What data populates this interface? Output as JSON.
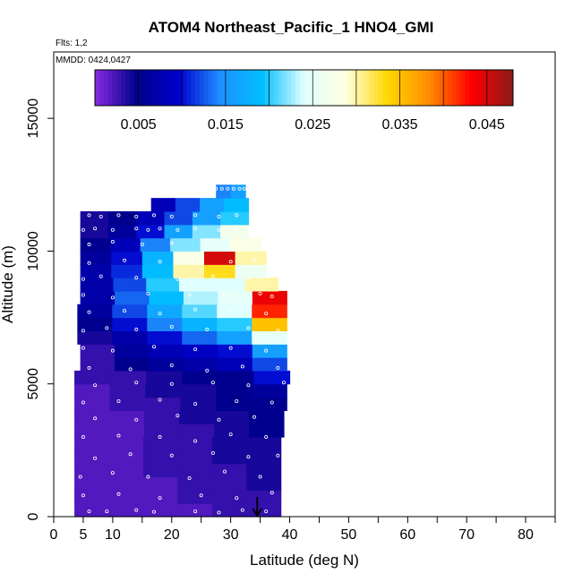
{
  "chart_data": {
    "type": "heatmap",
    "title": "ATOM4 Northeast_Pacific_1 HNO4_GMI",
    "flights_label": "Flts: 1,2",
    "dates_label": "MMDD: 0424,0427",
    "xlabel": "Latitude (deg N)",
    "ylabel": "Altitude (m)",
    "xlim": [
      0,
      85
    ],
    "ylim": [
      0,
      17500
    ],
    "x_ticks": [
      0,
      5,
      10,
      20,
      30,
      40,
      50,
      60,
      70,
      80
    ],
    "y_ticks": [
      0,
      5000,
      10000,
      15000
    ],
    "colorbar": {
      "range": [
        0,
        0.048
      ],
      "tick_values": [
        0.005,
        0.015,
        0.025,
        0.035,
        0.045
      ],
      "tick_labels": [
        "0.005",
        "0.015",
        "0.025",
        "0.035",
        "0.045"
      ],
      "colors": [
        "#8a2be2",
        "#00008b",
        "#0000cd",
        "#1e90ff",
        "#00bfff",
        "#e0ffff",
        "#ffffe0",
        "#ffd700",
        "#ff8c00",
        "#ff0000",
        "#8b1a1a"
      ]
    },
    "layers": [
      {
        "alt_min": 0,
        "alt_max": 500,
        "lat_min": 3.5,
        "lat_max": 38.5,
        "values": [
          0.002,
          0.002,
          0.002,
          0.002,
          0.003,
          0.003
        ]
      },
      {
        "alt_min": 500,
        "alt_max": 1000,
        "lat_min": 3.5,
        "lat_max": 38.5,
        "values": [
          0.002,
          0.002,
          0.002,
          0.003,
          0.003,
          0.003
        ]
      },
      {
        "alt_min": 1000,
        "alt_max": 1500,
        "lat_min": 3.5,
        "lat_max": 38.5,
        "values": [
          0.002,
          0.002,
          0.002,
          0.003,
          0.003,
          0.004
        ]
      },
      {
        "alt_min": 1500,
        "alt_max": 2000,
        "lat_min": 3.5,
        "lat_max": 38.5,
        "values": [
          0.002,
          0.002,
          0.003,
          0.003,
          0.003,
          0.004
        ]
      },
      {
        "alt_min": 2000,
        "alt_max": 2500,
        "lat_min": 3.5,
        "lat_max": 38.5,
        "values": [
          0.002,
          0.002,
          0.003,
          0.003,
          0.004,
          0.004
        ]
      },
      {
        "alt_min": 2500,
        "alt_max": 3000,
        "lat_min": 3.5,
        "lat_max": 38.5,
        "values": [
          0.002,
          0.002,
          0.003,
          0.003,
          0.004,
          0.004
        ]
      },
      {
        "alt_min": 3000,
        "alt_max": 3500,
        "lat_min": 3.5,
        "lat_max": 39,
        "values": [
          0.002,
          0.002,
          0.003,
          0.003,
          0.004,
          0.005
        ]
      },
      {
        "alt_min": 3500,
        "alt_max": 4000,
        "lat_min": 3.5,
        "lat_max": 39,
        "values": [
          0.002,
          0.002,
          0.003,
          0.004,
          0.004,
          0.005
        ]
      },
      {
        "alt_min": 4000,
        "alt_max": 4500,
        "lat_min": 3.5,
        "lat_max": 39.5,
        "values": [
          0.002,
          0.003,
          0.003,
          0.004,
          0.005,
          0.005
        ]
      },
      {
        "alt_min": 4500,
        "alt_max": 5000,
        "lat_min": 3.5,
        "lat_max": 39.5,
        "values": [
          0.002,
          0.003,
          0.004,
          0.004,
          0.005,
          0.006
        ]
      },
      {
        "alt_min": 5000,
        "alt_max": 5500,
        "lat_min": 3.5,
        "lat_max": 40,
        "values": [
          0.003,
          0.003,
          0.004,
          0.005,
          0.005,
          0.01
        ]
      },
      {
        "alt_min": 5500,
        "alt_max": 6000,
        "lat_min": 4.5,
        "lat_max": 39.5,
        "values": [
          0.003,
          0.005,
          0.006,
          0.007,
          0.008,
          0.012
        ]
      },
      {
        "alt_min": 6000,
        "alt_max": 6500,
        "lat_min": 4.5,
        "lat_max": 39.5,
        "values": [
          0.003,
          0.006,
          0.008,
          0.009,
          0.01,
          0.016
        ]
      },
      {
        "alt_min": 6500,
        "alt_max": 7000,
        "lat_min": 4,
        "lat_max": 39.5,
        "values": [
          0.004,
          0.007,
          0.01,
          0.013,
          0.016,
          0.025
        ]
      },
      {
        "alt_min": 7000,
        "alt_max": 7500,
        "lat_min": 4,
        "lat_max": 39.5,
        "values": [
          0.005,
          0.01,
          0.014,
          0.018,
          0.02,
          0.035
        ]
      },
      {
        "alt_min": 7500,
        "alt_max": 8000,
        "lat_min": 4,
        "lat_max": 39.5,
        "values": [
          0.006,
          0.012,
          0.017,
          0.021,
          0.024,
          0.042
        ]
      },
      {
        "alt_min": 8000,
        "alt_max": 8500,
        "lat_min": 4.5,
        "lat_max": 39.5,
        "values": [
          0.007,
          0.013,
          0.019,
          0.023,
          0.025,
          0.044
        ]
      },
      {
        "alt_min": 8500,
        "alt_max": 9000,
        "lat_min": 4.5,
        "lat_max": 38,
        "values": [
          0.007,
          0.012,
          0.02,
          0.024,
          0.024,
          0.03
        ]
      },
      {
        "alt_min": 9000,
        "alt_max": 9500,
        "lat_min": 4.5,
        "lat_max": 36,
        "values": [
          0.007,
          0.011,
          0.019,
          0.03,
          0.033,
          0.026
        ]
      },
      {
        "alt_min": 9500,
        "alt_max": 10000,
        "lat_min": 4.5,
        "lat_max": 36,
        "values": [
          0.006,
          0.01,
          0.018,
          0.028,
          0.045,
          0.03
        ]
      },
      {
        "alt_min": 10000,
        "alt_max": 10500,
        "lat_min": 4.5,
        "lat_max": 35,
        "values": [
          0.005,
          0.008,
          0.014,
          0.022,
          0.025,
          0.028
        ]
      },
      {
        "alt_min": 10500,
        "alt_max": 11000,
        "lat_min": 4.5,
        "lat_max": 33,
        "values": [
          0.004,
          0.006,
          0.01,
          0.016,
          0.022,
          0.027
        ]
      },
      {
        "alt_min": 11000,
        "alt_max": 11500,
        "lat_min": 4.5,
        "lat_max": 33,
        "values": [
          0.004,
          0.005,
          0.008,
          0.012,
          0.016,
          0.02
        ]
      },
      {
        "alt_min": 11500,
        "alt_max": 12000,
        "lat_min": 16.5,
        "lat_max": 33,
        "values": [
          0.008,
          0.012,
          0.016,
          0.019
        ]
      },
      {
        "alt_min": 12000,
        "alt_max": 12500,
        "lat_min": 27.5,
        "lat_max": 32.5,
        "values": [
          0.014,
          0.016
        ]
      }
    ],
    "sample_points": [
      [
        6,
        200
      ],
      [
        9,
        200
      ],
      [
        14,
        250
      ],
      [
        17,
        180
      ],
      [
        24,
        200
      ],
      [
        28,
        150
      ],
      [
        32,
        250
      ],
      [
        36,
        200
      ],
      [
        5,
        800
      ],
      [
        11,
        850
      ],
      [
        18,
        700
      ],
      [
        25,
        800
      ],
      [
        31,
        700
      ],
      [
        37,
        900
      ],
      [
        4.5,
        1500
      ],
      [
        10,
        1650
      ],
      [
        16,
        1500
      ],
      [
        23,
        1450
      ],
      [
        29,
        1700
      ],
      [
        35,
        1500
      ],
      [
        7,
        2200
      ],
      [
        13,
        2350
      ],
      [
        20,
        2300
      ],
      [
        27,
        2400
      ],
      [
        33,
        2250
      ],
      [
        38,
        2300
      ],
      [
        5,
        3000
      ],
      [
        11,
        3050
      ],
      [
        18,
        3000
      ],
      [
        24,
        2850
      ],
      [
        30,
        3100
      ],
      [
        36,
        3000
      ],
      [
        7,
        3700
      ],
      [
        14,
        3650
      ],
      [
        21,
        3800
      ],
      [
        28,
        3650
      ],
      [
        34,
        3750
      ],
      [
        5,
        4300
      ],
      [
        11,
        4350
      ],
      [
        18,
        4400
      ],
      [
        24,
        4250
      ],
      [
        31,
        4350
      ],
      [
        37,
        4300
      ],
      [
        7,
        4950
      ],
      [
        14,
        5050
      ],
      [
        20,
        5000
      ],
      [
        27,
        5050
      ],
      [
        33,
        4950
      ],
      [
        39,
        5050
      ],
      [
        6,
        5600
      ],
      [
        13,
        5550
      ],
      [
        20,
        5700
      ],
      [
        26,
        5500
      ],
      [
        32,
        5650
      ],
      [
        38,
        5600
      ],
      [
        5,
        6350
      ],
      [
        10,
        6250
      ],
      [
        17,
        6400
      ],
      [
        24,
        6300
      ],
      [
        30,
        6350
      ],
      [
        36,
        6250
      ],
      [
        5,
        7000
      ],
      [
        9,
        7100
      ],
      [
        14,
        7050
      ],
      [
        20,
        7150
      ],
      [
        26,
        7050
      ],
      [
        33,
        7100
      ],
      [
        38,
        7000
      ],
      [
        6,
        7700
      ],
      [
        12,
        7750
      ],
      [
        18,
        7650
      ],
      [
        24,
        7800
      ],
      [
        30,
        7750
      ],
      [
        36,
        7650
      ],
      [
        5,
        8350
      ],
      [
        10,
        8250
      ],
      [
        16,
        8400
      ],
      [
        23,
        8350
      ],
      [
        29,
        8300
      ],
      [
        35,
        8400
      ],
      [
        37,
        8300
      ],
      [
        5,
        8950
      ],
      [
        8,
        9050
      ],
      [
        14,
        9000
      ],
      [
        21,
        8950
      ],
      [
        27,
        9050
      ],
      [
        33,
        8950
      ],
      [
        6,
        9550
      ],
      [
        12,
        9650
      ],
      [
        18,
        9600
      ],
      [
        24,
        9550
      ],
      [
        30,
        9600
      ],
      [
        34,
        9650
      ],
      [
        6,
        10250
      ],
      [
        10,
        10350
      ],
      [
        15,
        10250
      ],
      [
        20,
        10300
      ],
      [
        26,
        10250
      ],
      [
        32,
        10350
      ],
      [
        5,
        10800
      ],
      [
        7,
        10850
      ],
      [
        10,
        10800
      ],
      [
        14,
        10850
      ],
      [
        16,
        10800
      ],
      [
        18,
        10850
      ],
      [
        21,
        10800
      ],
      [
        24,
        10850
      ],
      [
        28,
        10800
      ],
      [
        31,
        10850
      ],
      [
        6,
        11350
      ],
      [
        8,
        11300
      ],
      [
        11,
        11350
      ],
      [
        14,
        11300
      ],
      [
        17,
        11350
      ],
      [
        20,
        11300
      ],
      [
        24,
        11350
      ],
      [
        28,
        11300
      ],
      [
        31,
        11350
      ],
      [
        27.5,
        12350
      ],
      [
        28.5,
        12350
      ],
      [
        29.5,
        12350
      ],
      [
        30.5,
        12350
      ],
      [
        31.5,
        12350
      ],
      [
        32.3,
        12350
      ]
    ],
    "arrow_x": 34.5
  }
}
